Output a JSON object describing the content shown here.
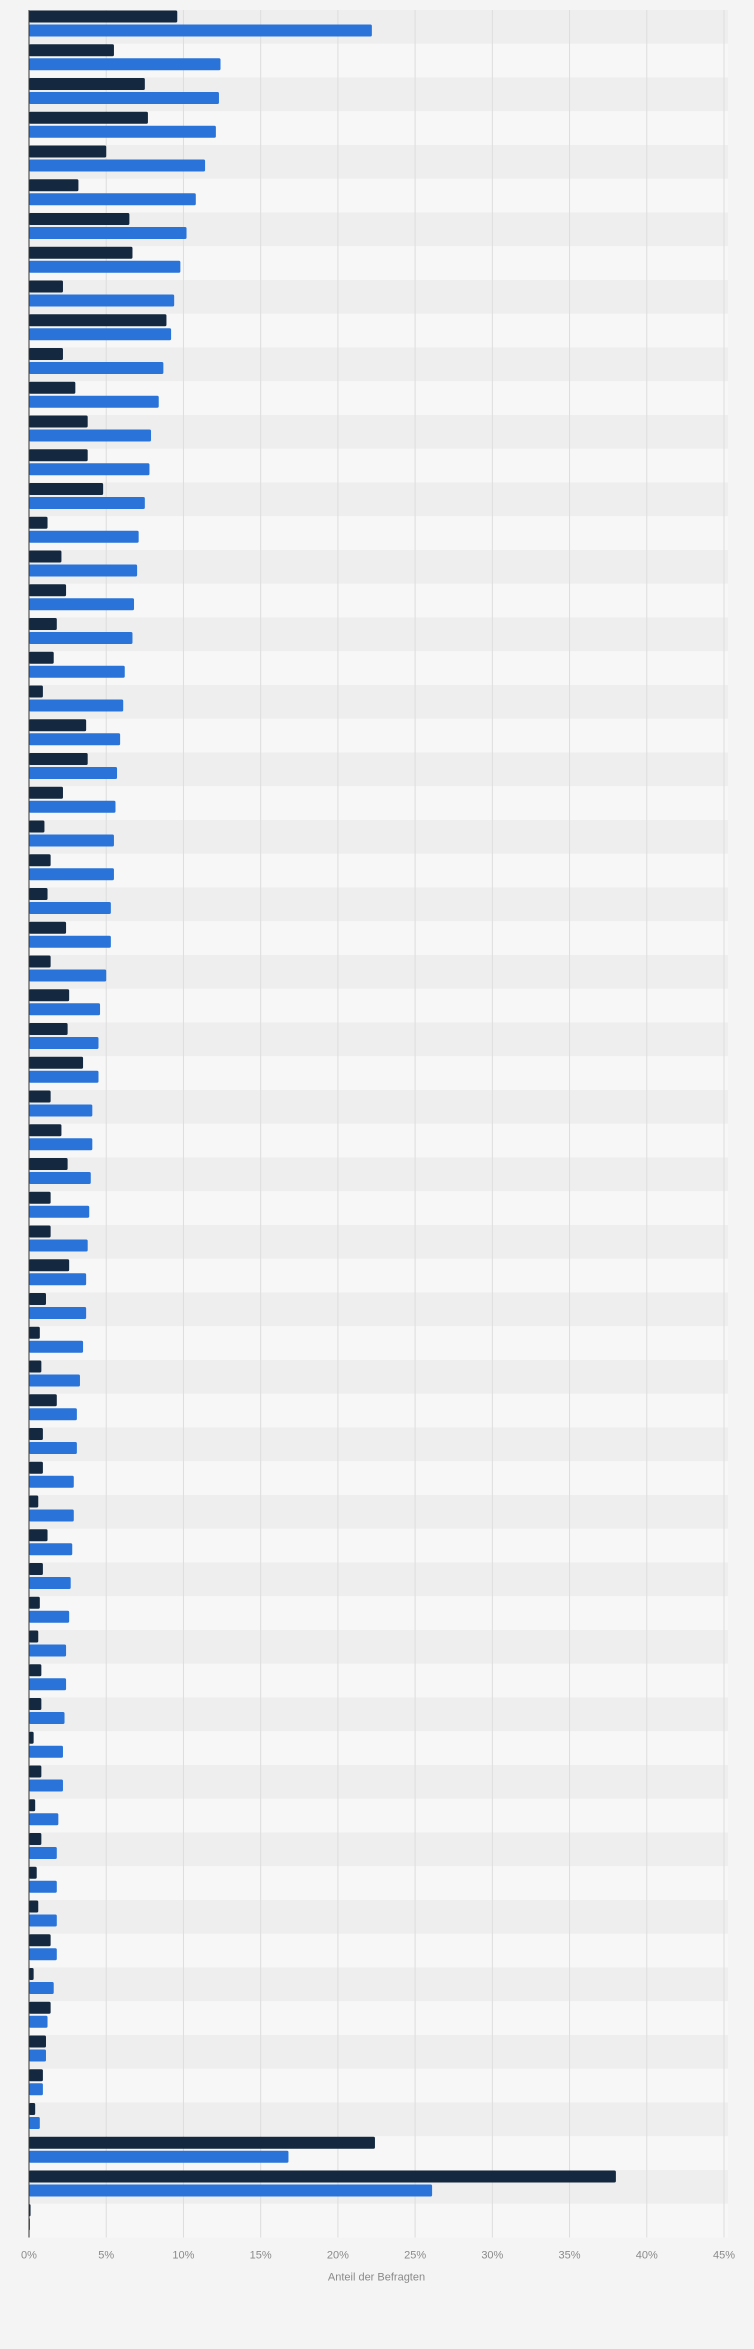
{
  "chart_data": {
    "type": "bar",
    "orientation": "horizontal",
    "xlabel": "Anteil der Befragten",
    "ylabel": "",
    "xlim": [
      0,
      45
    ],
    "xticks": [
      "0%",
      "5%",
      "10%",
      "15%",
      "20%",
      "25%",
      "30%",
      "35%",
      "40%",
      "45%"
    ],
    "grid": true,
    "legend": "none",
    "colors": {
      "series_a": "#14283f",
      "series_b": "#2a74d9",
      "band_dark": "#eeeeee",
      "band_light": "#f7f7f7",
      "grid": "#dddddd"
    },
    "series": [
      {
        "values": [
          9.6,
          5.5,
          7.5,
          7.7,
          5.0,
          3.2,
          6.5,
          6.7,
          2.2,
          8.9,
          2.2,
          3.0,
          3.8,
          3.8,
          4.8,
          1.2,
          2.1,
          2.4,
          1.8,
          1.6,
          0.9,
          3.7,
          3.8,
          2.2,
          1.0,
          1.4,
          1.2,
          2.4,
          1.4,
          2.6,
          2.5,
          3.5,
          1.4,
          2.1,
          2.5,
          1.4,
          1.4,
          2.6,
          1.1,
          0.7,
          0.8,
          1.8,
          0.9,
          0.9,
          0.6,
          1.2,
          0.9,
          0.7,
          0.6,
          0.8,
          0.8,
          0.3,
          0.8,
          0.4,
          0.8,
          0.5,
          0.6,
          1.4,
          0.3,
          1.4,
          1.1,
          0.9,
          0.4,
          22.4,
          38.0,
          0.1
        ]
      },
      {
        "values": [
          22.2,
          12.4,
          12.3,
          12.1,
          11.4,
          10.8,
          10.2,
          9.8,
          9.4,
          9.2,
          8.7,
          8.4,
          7.9,
          7.8,
          7.5,
          7.1,
          7.0,
          6.8,
          6.7,
          6.2,
          6.1,
          5.9,
          5.7,
          5.6,
          5.5,
          5.5,
          5.3,
          5.3,
          5.0,
          4.6,
          4.5,
          4.5,
          4.1,
          4.1,
          4.0,
          3.9,
          3.8,
          3.7,
          3.7,
          3.5,
          3.3,
          3.1,
          3.1,
          2.9,
          2.9,
          2.8,
          2.7,
          2.6,
          2.4,
          2.4,
          2.3,
          2.2,
          2.2,
          1.9,
          1.8,
          1.8,
          1.8,
          1.8,
          1.6,
          1.2,
          1.1,
          0.9,
          0.7,
          16.8,
          26.1,
          0.0
        ]
      }
    ]
  }
}
